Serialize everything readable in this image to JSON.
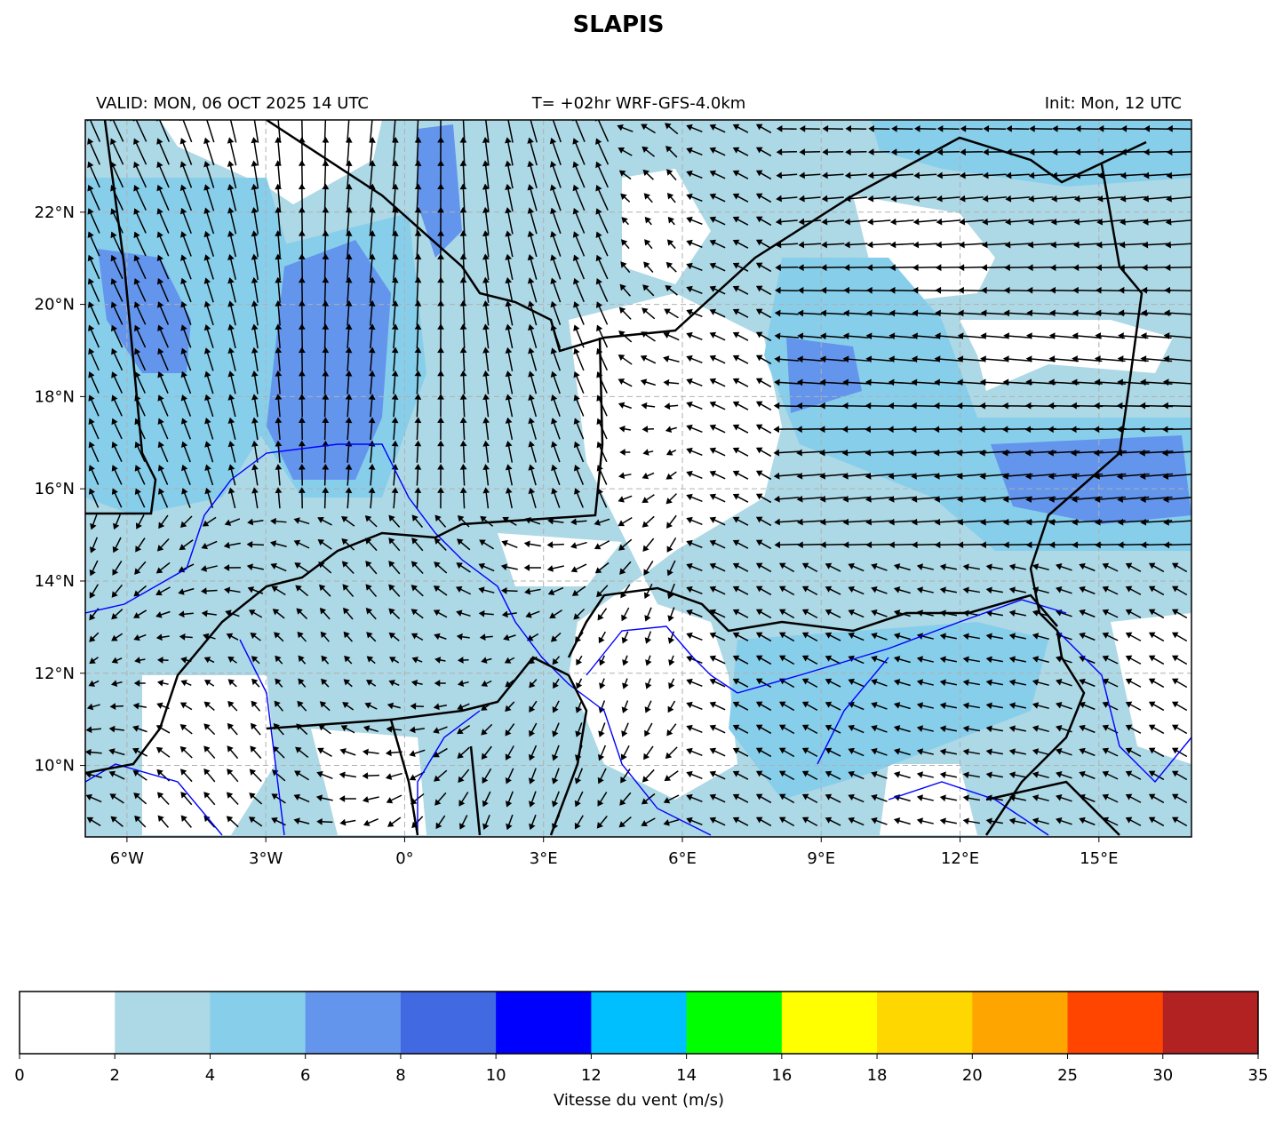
{
  "title": "SLAPIS",
  "header": {
    "left": "VALID: MON, 06 OCT 2025 14 UTC",
    "center": "T= +02hr WRF-GFS-4.0km",
    "right": "Init: Mon, 12 UTC"
  },
  "map": {
    "xlim": [
      -6.9,
      17
    ],
    "ylim": [
      8.45,
      24
    ],
    "xticks": [
      {
        "value": -6,
        "label": "6°W"
      },
      {
        "value": -3,
        "label": "3°W"
      },
      {
        "value": 0,
        "label": "0°"
      },
      {
        "value": 3,
        "label": "3°E"
      },
      {
        "value": 6,
        "label": "6°E"
      },
      {
        "value": 9,
        "label": "9°E"
      },
      {
        "value": 12,
        "label": "12°E"
      },
      {
        "value": 15,
        "label": "15°E"
      }
    ],
    "yticks": [
      {
        "value": 10,
        "label": "10°N"
      },
      {
        "value": 12,
        "label": "12°N"
      },
      {
        "value": 14,
        "label": "14°N"
      },
      {
        "value": 16,
        "label": "16°N"
      },
      {
        "value": 18,
        "label": "18°N"
      },
      {
        "value": 20,
        "label": "20°N"
      },
      {
        "value": 22,
        "label": "22°N"
      }
    ],
    "grid": true
  },
  "colorbar": {
    "label": "Vitesse du vent (m/s)",
    "bounds": [
      0,
      2,
      4,
      6,
      8,
      10,
      12,
      14,
      16,
      18,
      20,
      25,
      30,
      35
    ],
    "colors": [
      "#ffffff",
      "#add8e6",
      "#87ceeb",
      "#6495ed",
      "#4169e1",
      "#0000ff",
      "#00bfff",
      "#00ff00",
      "#ffff00",
      "#ffd700",
      "#ffa500",
      "#ff4500",
      "#b22222"
    ]
  }
}
